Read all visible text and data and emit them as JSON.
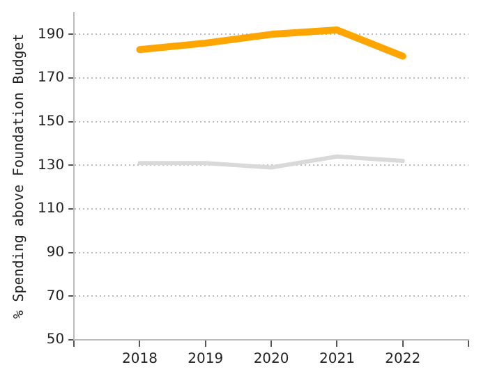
{
  "chart_data": {
    "type": "line",
    "ylabel": "% Spending above Foundation Budget",
    "x": [
      2018,
      2019,
      2020,
      2021,
      2022
    ],
    "xlim": [
      2017,
      2023
    ],
    "xticks": [
      {
        "value": 2017,
        "label": null
      },
      2018,
      2019,
      2020,
      2021,
      2022,
      {
        "value": 2023,
        "label": null
      }
    ],
    "ylim": [
      50,
      200
    ],
    "yticks": [
      50,
      70,
      90,
      110,
      130,
      150,
      170,
      190
    ],
    "grid": "y",
    "legend": false,
    "marker": "none",
    "line_style": "solid",
    "series": [
      {
        "color": "#ffa500",
        "values": [
          183,
          186,
          190,
          192,
          180
        ]
      },
      {
        "color": "#d9d9d9",
        "values": [
          131,
          131,
          129,
          134,
          132
        ]
      }
    ]
  }
}
